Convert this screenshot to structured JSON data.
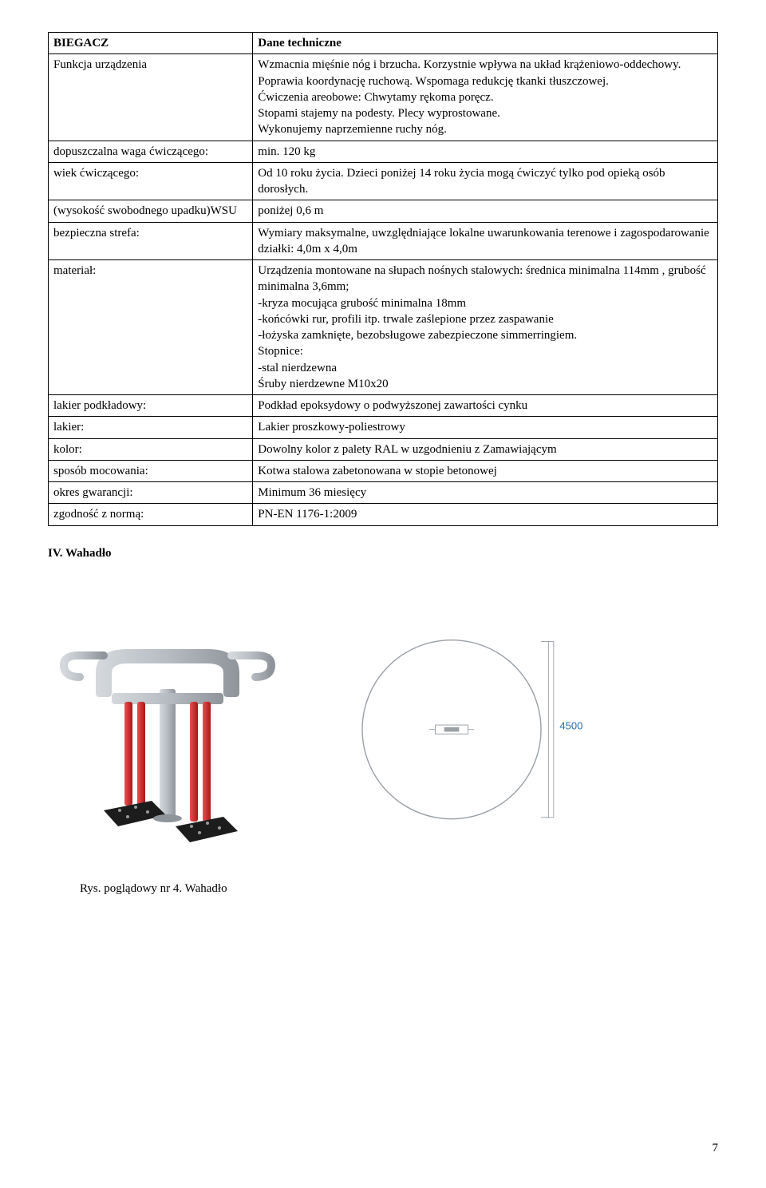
{
  "table": {
    "rows": [
      {
        "key": "BIEGACZ",
        "keyBold": true,
        "val": "Dane techniczne",
        "valBold": true
      },
      {
        "key": "Funkcja urządzenia",
        "val": "Wzmacnia mięśnie nóg i brzucha. Korzystnie wpływa na układ krążeniowo-oddechowy.\nPoprawia koordynację ruchową. Wspomaga redukcję tkanki tłuszczowej.\nĆwiczenia areobowe: Chwytamy rękoma poręcz.\nStopami stajemy na podesty. Plecy wyprostowane.\nWykonujemy naprzemienne ruchy nóg."
      },
      {
        "key": "dopuszczalna waga ćwiczącego:",
        "val": "min. 120 kg"
      },
      {
        "key": "wiek ćwiczącego:",
        "val": "Od 10 roku życia. Dzieci poniżej 14 roku życia mogą ćwiczyć tylko pod opieką osób dorosłych."
      },
      {
        "key": "(wysokość swobodnego upadku)WSU",
        "val": "poniżej 0,6 m"
      },
      {
        "key": "bezpieczna strefa:",
        "val": "Wymiary maksymalne, uwzględniające lokalne uwarunkowania terenowe i zagospodarowanie działki: 4,0m x 4,0m"
      },
      {
        "key": "materiał:",
        "val": "Urządzenia montowane na słupach nośnych stalowych: średnica minimalna 114mm , grubość minimalna 3,6mm;\n-kryza mocująca grubość minimalna 18mm\n-końcówki rur, profili  itp. trwale zaślepione przez zaspawanie\n-łożyska zamknięte, bezobsługowe zabezpieczone simmerringiem.\nStopnice:\n-stal nierdzewna\nŚruby nierdzewne M10x20"
      },
      {
        "key": "lakier podkładowy:",
        "val": "Podkład epoksydowy o podwyższonej zawartości cynku"
      },
      {
        "key": "lakier:",
        "val": "Lakier proszkowy-poliestrowy"
      },
      {
        "key": "kolor:",
        "val": "Dowolny kolor z palety RAL w uzgodnieniu z Zamawiającym"
      },
      {
        "key": "sposób mocowania:",
        "val": "Kotwa stalowa zabetonowana w stopie betonowej"
      },
      {
        "key": "okres gwarancji:",
        "val": "Minimum 36 miesięcy"
      },
      {
        "key": "zgodność z normą:",
        "val": "PN-EN 1176-1:2009"
      }
    ]
  },
  "section_heading": "IV. Wahadło",
  "caption": "Rys. poglądowy nr 4. Wahadło",
  "page_number": "7",
  "diagram": {
    "dim_label": "4500",
    "dim_label_color": "#2a6fb5",
    "circle_stroke": "#9aa0a6",
    "equip_frame_color": "#b6bcc2",
    "equip_frame_highlight": "#d5d9dd",
    "equip_red": "#d22222",
    "equip_black": "#1c1c1c"
  }
}
